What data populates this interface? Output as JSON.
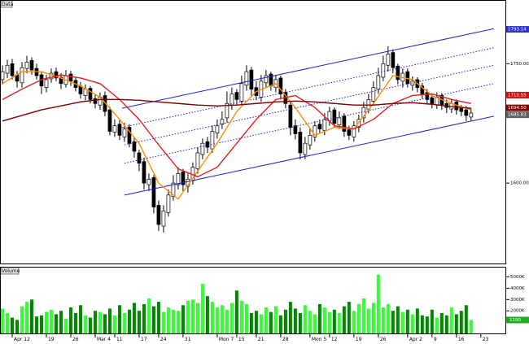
{
  "chart_data": [
    {
      "type": "candlestick",
      "title": "Data",
      "xlim": [
        -0.5,
        103.2
      ],
      "ylim": [
        1498,
        1830
      ],
      "yticks": [
        {
          "value": 1600,
          "label": "1600.00"
        },
        {
          "value": 1750,
          "label": "1750.00"
        }
      ],
      "up_color": "#ffffff",
      "down_color": "#000000",
      "x": [
        0,
        1,
        2,
        3,
        4,
        5,
        6,
        7,
        8,
        9,
        10,
        11,
        12,
        13,
        14,
        15,
        16,
        17,
        18,
        19,
        20,
        21,
        22,
        23,
        24,
        25,
        26,
        27,
        28,
        29,
        30,
        31,
        32,
        33,
        34,
        35,
        36,
        37,
        38,
        39,
        40,
        41,
        42,
        43,
        44,
        45,
        46,
        47,
        48,
        49,
        50,
        51,
        52,
        53,
        54,
        55,
        56,
        57,
        58,
        59,
        60,
        61,
        62,
        63,
        64,
        65,
        66,
        67,
        68,
        69,
        70,
        71,
        72,
        73,
        74,
        75,
        76,
        77,
        78,
        79,
        80,
        81,
        82,
        83,
        84,
        85,
        86,
        87,
        88,
        89,
        90,
        91,
        92,
        93,
        94,
        95,
        96
      ],
      "open": [
        1730,
        1738,
        1750,
        1736,
        1726,
        1744,
        1754,
        1744,
        1736,
        1720,
        1731,
        1740,
        1733,
        1724,
        1737,
        1729,
        1722,
        1710,
        1719,
        1706,
        1698,
        1710,
        1692,
        1664,
        1674,
        1658,
        1670,
        1652,
        1638,
        1627,
        1598,
        1607,
        1572,
        1546,
        1563,
        1583,
        1598,
        1614,
        1596,
        1603,
        1618,
        1636,
        1652,
        1643,
        1663,
        1674,
        1682,
        1698,
        1714,
        1703,
        1723,
        1742,
        1720,
        1708,
        1726,
        1737,
        1720,
        1732,
        1714,
        1698,
        1672,
        1664,
        1636,
        1648,
        1658,
        1674,
        1666,
        1678,
        1692,
        1673,
        1684,
        1667,
        1658,
        1670,
        1682,
        1693,
        1703,
        1718,
        1733,
        1748,
        1764,
        1747,
        1728,
        1740,
        1723,
        1730,
        1722,
        1714,
        1707,
        1698,
        1710,
        1700,
        1693,
        1702,
        1694,
        1692,
        1683
      ],
      "high": [
        1748,
        1755,
        1756,
        1741,
        1752,
        1760,
        1758,
        1750,
        1740,
        1736,
        1744,
        1745,
        1738,
        1742,
        1741,
        1733,
        1727,
        1724,
        1722,
        1712,
        1714,
        1715,
        1696,
        1680,
        1679,
        1676,
        1674,
        1658,
        1642,
        1632,
        1612,
        1610,
        1578,
        1572,
        1592,
        1610,
        1620,
        1618,
        1612,
        1626,
        1645,
        1656,
        1658,
        1672,
        1680,
        1690,
        1715,
        1720,
        1718,
        1735,
        1748,
        1746,
        1728,
        1736,
        1742,
        1740,
        1736,
        1735,
        1718,
        1702,
        1680,
        1670,
        1658,
        1668,
        1678,
        1680,
        1688,
        1696,
        1695,
        1690,
        1688,
        1672,
        1678,
        1686,
        1702,
        1712,
        1728,
        1745,
        1760,
        1772,
        1768,
        1750,
        1744,
        1744,
        1734,
        1733,
        1726,
        1718,
        1712,
        1714,
        1713,
        1705,
        1706,
        1705,
        1698,
        1697,
        1694
      ],
      "low": [
        1724,
        1732,
        1730,
        1720,
        1720,
        1738,
        1736,
        1730,
        1712,
        1714,
        1726,
        1728,
        1718,
        1720,
        1722,
        1715,
        1706,
        1704,
        1700,
        1694,
        1692,
        1684,
        1660,
        1658,
        1654,
        1652,
        1645,
        1632,
        1615,
        1592,
        1590,
        1562,
        1540,
        1538,
        1558,
        1578,
        1592,
        1590,
        1588,
        1598,
        1612,
        1630,
        1638,
        1638,
        1656,
        1668,
        1676,
        1692,
        1698,
        1698,
        1716,
        1710,
        1704,
        1702,
        1720,
        1716,
        1714,
        1705,
        1694,
        1660,
        1655,
        1630,
        1630,
        1642,
        1652,
        1662,
        1660,
        1672,
        1670,
        1668,
        1658,
        1654,
        1652,
        1664,
        1676,
        1688,
        1698,
        1712,
        1728,
        1740,
        1738,
        1724,
        1720,
        1720,
        1716,
        1714,
        1706,
        1700,
        1694,
        1693,
        1692,
        1688,
        1688,
        1686,
        1684,
        1678,
        1678
      ],
      "close": [
        1740,
        1748,
        1735,
        1728,
        1745,
        1752,
        1742,
        1735,
        1722,
        1730,
        1738,
        1732,
        1725,
        1735,
        1728,
        1720,
        1712,
        1718,
        1705,
        1700,
        1708,
        1690,
        1665,
        1672,
        1660,
        1668,
        1650,
        1640,
        1625,
        1600,
        1605,
        1570,
        1548,
        1565,
        1585,
        1600,
        1612,
        1598,
        1605,
        1620,
        1638,
        1650,
        1645,
        1665,
        1672,
        1680,
        1700,
        1712,
        1705,
        1725,
        1740,
        1718,
        1710,
        1728,
        1735,
        1722,
        1730,
        1712,
        1700,
        1670,
        1662,
        1638,
        1650,
        1660,
        1672,
        1668,
        1680,
        1690,
        1675,
        1682,
        1665,
        1660,
        1672,
        1680,
        1695,
        1705,
        1720,
        1735,
        1750,
        1762,
        1745,
        1730,
        1738,
        1725,
        1728,
        1720,
        1712,
        1705,
        1700,
        1708,
        1698,
        1695,
        1700,
        1692,
        1690,
        1685,
        1688
      ],
      "overlays": [
        {
          "color": "#ff8c00",
          "x": [
            0,
            4,
            8,
            12,
            16,
            20,
            24,
            28,
            32,
            36,
            40,
            44,
            48,
            52,
            56,
            60,
            64,
            68,
            72,
            76,
            80,
            84,
            88,
            92,
            96
          ],
          "values": [
            1725,
            1740,
            1740,
            1732,
            1722,
            1708,
            1680,
            1650,
            1600,
            1580,
            1615,
            1650,
            1690,
            1715,
            1725,
            1695,
            1660,
            1670,
            1668,
            1700,
            1735,
            1730,
            1710,
            1700,
            1692
          ]
        },
        {
          "color": "#e02020",
          "x": [
            0,
            4,
            8,
            12,
            16,
            20,
            24,
            28,
            32,
            36,
            40,
            44,
            48,
            52,
            56,
            60,
            64,
            68,
            72,
            76,
            80,
            84,
            88,
            92,
            96
          ],
          "values": [
            1705,
            1718,
            1730,
            1736,
            1732,
            1725,
            1705,
            1680,
            1648,
            1618,
            1608,
            1620,
            1650,
            1680,
            1705,
            1710,
            1695,
            1672,
            1668,
            1680,
            1700,
            1710,
            1712,
            1705,
            1700
          ]
        },
        {
          "color": "#800000",
          "x": [
            0,
            4,
            8,
            12,
            16,
            20,
            24,
            28,
            32,
            36,
            40,
            44,
            48,
            52,
            56,
            60,
            64,
            68,
            72,
            76,
            80,
            84,
            88,
            92,
            96
          ],
          "values": [
            1678,
            1685,
            1692,
            1697,
            1702,
            1705,
            1705,
            1704,
            1702,
            1700,
            1698,
            1697,
            1698,
            1700,
            1702,
            1703,
            1702,
            1700,
            1698,
            1698,
            1700,
            1701,
            1699,
            1696,
            1694
          ]
        }
      ],
      "channels": [
        {
          "color": "#2020d0",
          "style": "solid",
          "x": [
            24.5,
            100.7
          ],
          "values": [
            1694,
            1794
          ]
        },
        {
          "color": "#2020d0",
          "style": "solid",
          "x": [
            25,
            100.7
          ],
          "values": [
            1585,
            1684
          ]
        },
        {
          "color": "#2020d0",
          "style": "dotted",
          "x": [
            24.5,
            100.7
          ],
          "values": [
            1670,
            1770
          ]
        },
        {
          "color": "#2020d0",
          "style": "dotted",
          "x": [
            25,
            100.7
          ],
          "values": [
            1648,
            1748
          ]
        },
        {
          "color": "#2020d0",
          "style": "dotted",
          "x": [
            25,
            100.7
          ],
          "values": [
            1625,
            1725
          ]
        }
      ],
      "price_tags": [
        {
          "value": 1793.14,
          "label": "1793.14",
          "color": "#3030c8"
        },
        {
          "value": 1710.55,
          "label": "1710.55",
          "color": "#d01010"
        },
        {
          "value": 1694.5,
          "label": "1694.50",
          "color": "#800000"
        },
        {
          "value": 1685.83,
          "label": "1685.83",
          "color": "#606060"
        }
      ]
    },
    {
      "type": "bar",
      "title": "Volume",
      "xlim": [
        -0.5,
        103.2
      ],
      "ylim": [
        0,
        5900
      ],
      "yticks": [
        {
          "value": 1000,
          "label": "1000K"
        },
        {
          "value": 2000,
          "label": "2000K"
        },
        {
          "value": 3000,
          "label": "3000K"
        },
        {
          "value": 4000,
          "label": "4000K"
        },
        {
          "value": 5000,
          "label": "5000K"
        }
      ],
      "up_color": "#33ff33",
      "down_color": "#008800",
      "x": [
        0,
        1,
        2,
        3,
        4,
        5,
        6,
        7,
        8,
        9,
        10,
        11,
        12,
        13,
        14,
        15,
        16,
        17,
        18,
        19,
        20,
        21,
        22,
        23,
        24,
        25,
        26,
        27,
        28,
        29,
        30,
        31,
        32,
        33,
        34,
        35,
        36,
        37,
        38,
        39,
        40,
        41,
        42,
        43,
        44,
        45,
        46,
        47,
        48,
        49,
        50,
        51,
        52,
        53,
        54,
        55,
        56,
        57,
        58,
        59,
        60,
        61,
        62,
        63,
        64,
        65,
        66,
        67,
        68,
        69,
        70,
        71,
        72,
        73,
        74,
        75,
        76,
        77,
        78,
        79,
        80,
        81,
        82,
        83,
        84,
        85,
        86,
        87,
        88,
        89,
        90,
        91,
        92,
        93,
        94,
        95,
        96
      ],
      "values": [
        2200,
        1800,
        1400,
        1200,
        2400,
        2800,
        3000,
        1500,
        1600,
        1900,
        2100,
        1700,
        2000,
        1300,
        2300,
        1800,
        2500,
        1600,
        1400,
        2000,
        1900,
        1700,
        2200,
        1600,
        2500,
        1800,
        2100,
        2700,
        2000,
        2600,
        3100,
        2400,
        2800,
        1900,
        2300,
        2100,
        2000,
        2500,
        2900,
        3000,
        2700,
        4400,
        3300,
        2800,
        2300,
        2500,
        2100,
        2700,
        3800,
        2900,
        2600,
        1800,
        2000,
        1700,
        2300,
        1900,
        2400,
        1600,
        2100,
        2800,
        2200,
        1800,
        2500,
        2000,
        1700,
        2600,
        2300,
        1900,
        2100,
        1800,
        2400,
        2800,
        2000,
        2600,
        3100,
        2200,
        2700,
        5200,
        2300,
        2600,
        2000,
        2400,
        1900,
        2100,
        1700,
        2200,
        1600,
        1500,
        2100,
        1400,
        1800,
        1600,
        2300,
        1700,
        2000,
        2500,
        1190
      ],
      "value_tag": {
        "value": 1190,
        "label": "1190",
        "color": "#22aa22"
      },
      "xticks": [
        {
          "value": 2,
          "label": "Apr 12"
        },
        {
          "value": 9,
          "label": "19"
        },
        {
          "value": 14,
          "label": "26"
        },
        {
          "value": 19,
          "label": "Mar 4"
        },
        {
          "value": 23,
          "label": "11"
        },
        {
          "value": 28,
          "label": "17"
        },
        {
          "value": 32,
          "label": "24"
        },
        {
          "value": 37,
          "label": "31"
        },
        {
          "value": 44,
          "label": "Mon 7"
        },
        {
          "value": 48,
          "label": "15"
        },
        {
          "value": 52,
          "label": "21"
        },
        {
          "value": 57,
          "label": "28"
        },
        {
          "value": 63,
          "label": "Mon 5"
        },
        {
          "value": 67,
          "label": "12"
        },
        {
          "value": 72,
          "label": "19"
        },
        {
          "value": 77,
          "label": "26"
        },
        {
          "value": 83,
          "label": "Apr 2"
        },
        {
          "value": 88,
          "label": "9"
        },
        {
          "value": 93,
          "label": "16"
        },
        {
          "value": 98,
          "label": "23"
        }
      ]
    }
  ]
}
